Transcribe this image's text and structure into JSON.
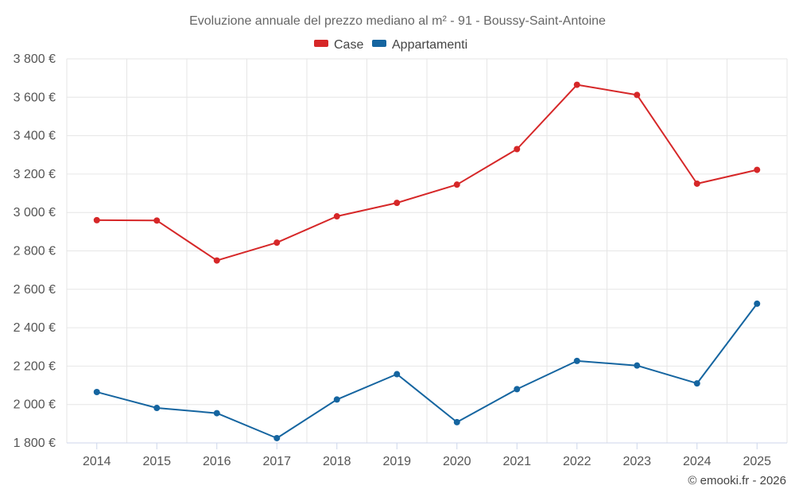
{
  "chart_data": {
    "type": "line",
    "title": "Evoluzione annuale del prezzo mediano al m² - 91 - Boussy-Saint-Antoine",
    "categories": [
      "2014",
      "2015",
      "2016",
      "2017",
      "2018",
      "2019",
      "2020",
      "2021",
      "2022",
      "2023",
      "2024",
      "2025"
    ],
    "series": [
      {
        "name": "Case",
        "color": "#d62728",
        "values": [
          2960,
          2958,
          2750,
          2843,
          2980,
          3050,
          3145,
          3330,
          3665,
          3612,
          3150,
          3222
        ]
      },
      {
        "name": "Appartamenti",
        "color": "#1565a0",
        "values": [
          2065,
          1982,
          1955,
          1825,
          2026,
          2158,
          1908,
          2080,
          2227,
          2203,
          2110,
          2525
        ]
      }
    ],
    "ylim": [
      1800,
      3800
    ],
    "yticks": [
      1800,
      2000,
      2200,
      2400,
      2600,
      2800,
      3000,
      3200,
      3400,
      3600,
      3800
    ],
    "ytick_labels": [
      "1 800 €",
      "2 000 €",
      "2 200 €",
      "2 400 €",
      "2 600 €",
      "2 800 €",
      "3 000 €",
      "3 200 €",
      "3 400 €",
      "3 600 €",
      "3 800 €"
    ],
    "xlabel": "",
    "ylabel": "",
    "grid": true,
    "legend_position": "top-center"
  },
  "credit": "© emooki.fr - 2026"
}
